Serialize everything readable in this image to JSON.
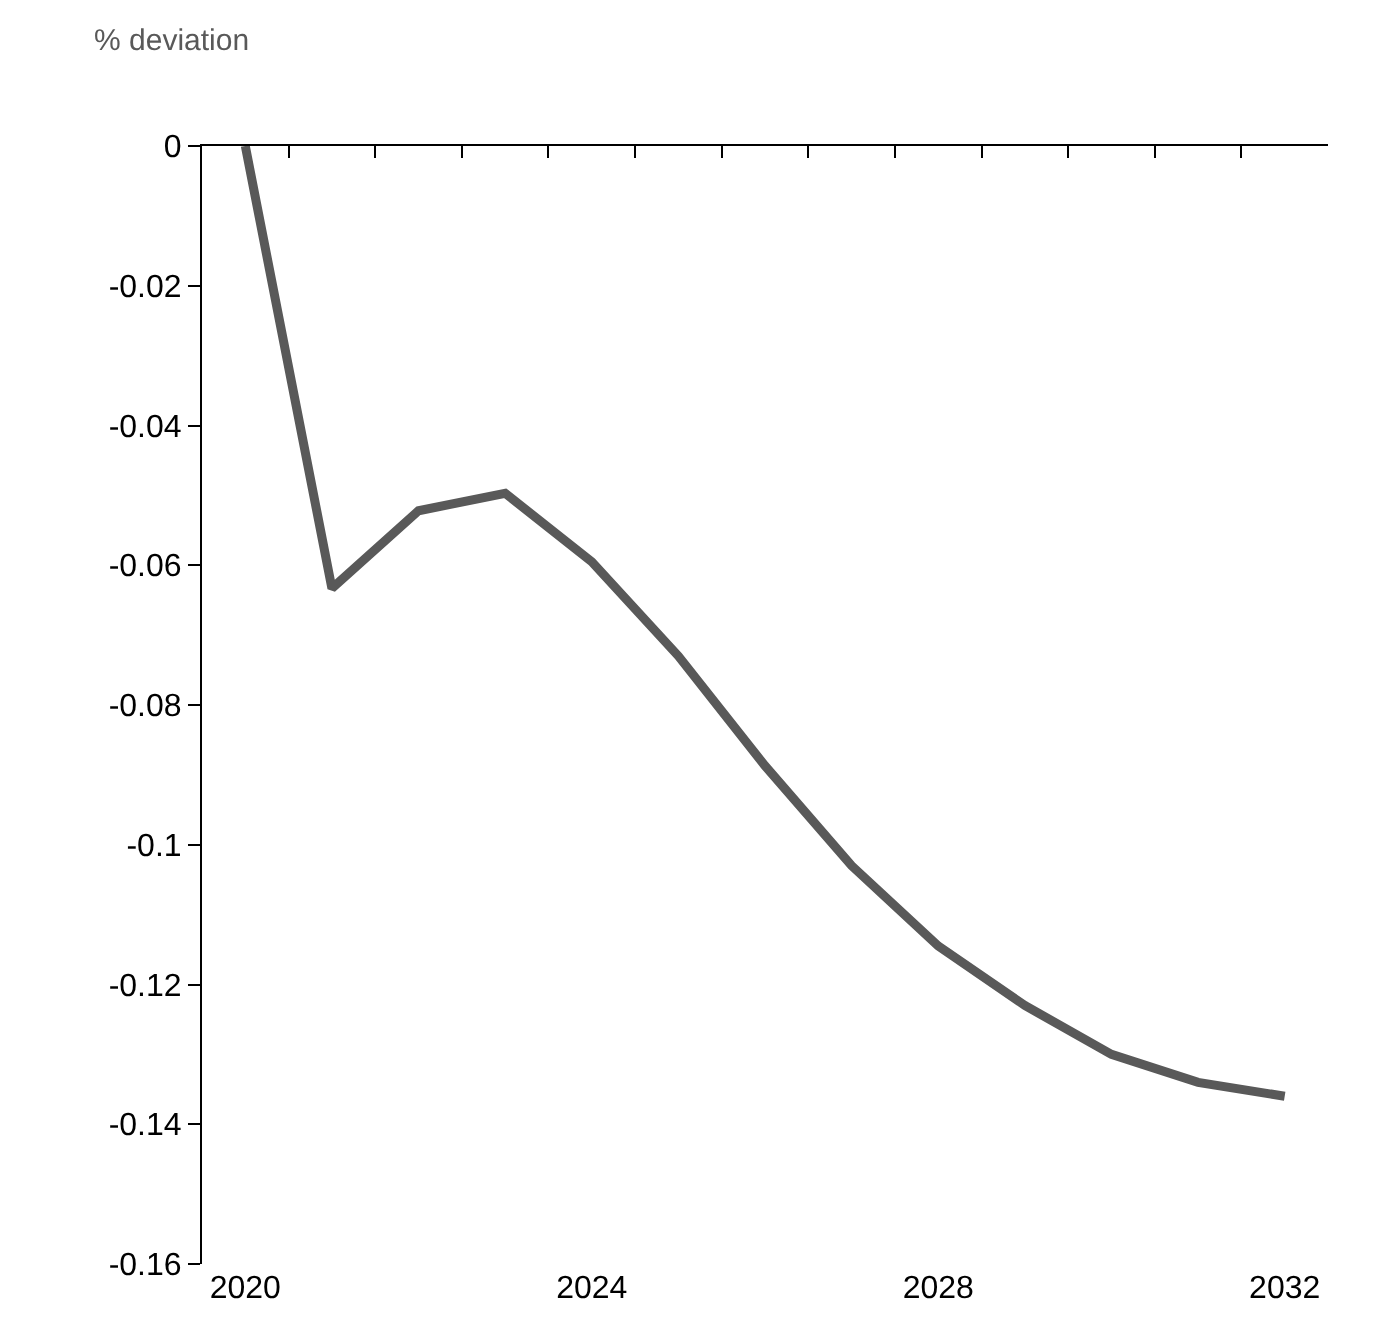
{
  "chart_data": {
    "type": "line",
    "ylabel": "% deviation",
    "x": [
      2020,
      2021,
      2022,
      2023,
      2024,
      2025,
      2026,
      2027,
      2028,
      2029,
      2030,
      2031,
      2032
    ],
    "series": [
      {
        "color": "#595959",
        "values": [
          0,
          -0.0633,
          -0.0522,
          -0.0497,
          -0.0595,
          -0.073,
          -0.0887,
          -0.103,
          -0.1145,
          -0.123,
          -0.13,
          -0.134,
          -0.136
        ]
      }
    ],
    "xlim": [
      2019.5,
      2032.5
    ],
    "xticks": [
      2020,
      2024,
      2028,
      2032,
      {
        "value": 2020.5,
        "label": null
      },
      {
        "value": 2021.5,
        "label": null
      },
      {
        "value": 2022.5,
        "label": null
      },
      {
        "value": 2023.5,
        "label": null
      },
      {
        "value": 2024.5,
        "label": null
      },
      {
        "value": 2025.5,
        "label": null
      },
      {
        "value": 2026.5,
        "label": null
      },
      {
        "value": 2027.5,
        "label": null
      },
      {
        "value": 2028.5,
        "label": null
      },
      {
        "value": 2029.5,
        "label": null
      },
      {
        "value": 2030.5,
        "label": null
      },
      {
        "value": 2031.5,
        "label": null
      }
    ],
    "ylim": [
      -0.16,
      0
    ],
    "yticks": [
      0,
      -0.02,
      -0.04,
      -0.06,
      -0.08,
      -0.1,
      -0.12,
      -0.14,
      -0.16
    ],
    "marker": "none",
    "line_style": "solid"
  }
}
